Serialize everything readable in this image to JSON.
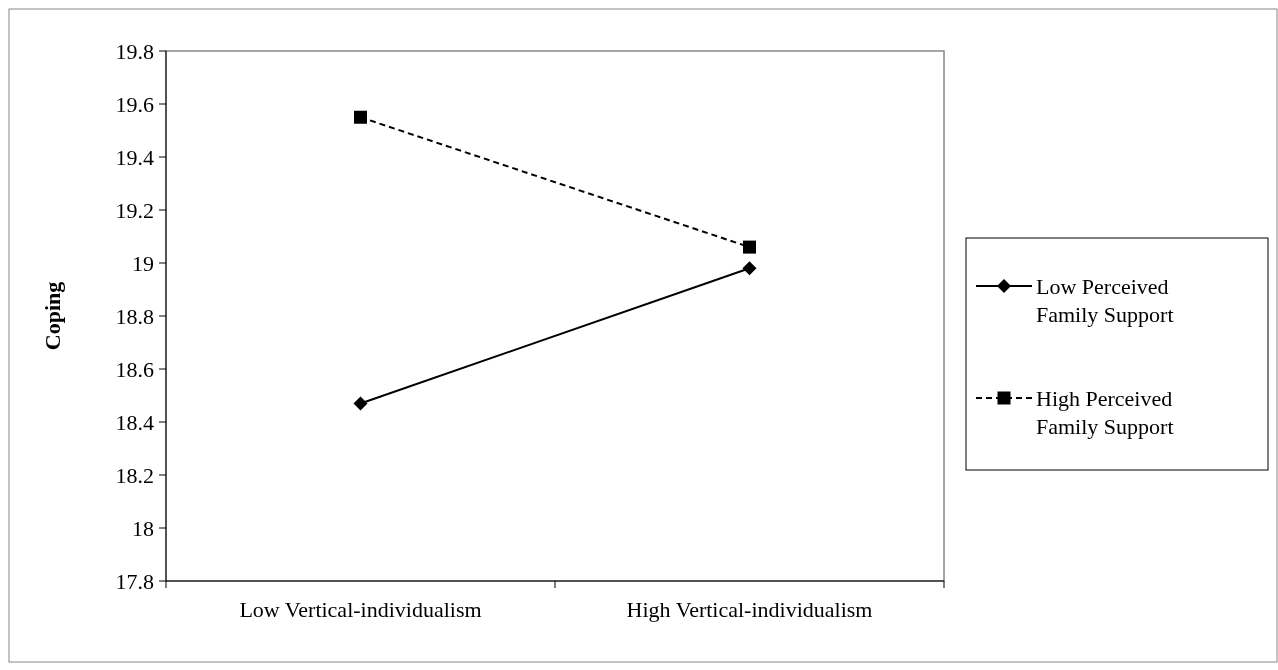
{
  "chart_data": {
    "type": "line",
    "ylabel": "Coping",
    "categories": [
      "Low Vertical-individualism",
      "High Vertical-individualism"
    ],
    "series": [
      {
        "name": "Low Perceived Family Support",
        "color": "#000000",
        "values": [
          18.47,
          18.98
        ],
        "marker": "diamond",
        "line_style": "solid"
      },
      {
        "name": "High Perceived Family Support",
        "color": "#000000",
        "values": [
          19.55,
          19.06
        ],
        "marker": "square",
        "line_style": "dashed"
      }
    ],
    "ylim": [
      17.8,
      19.8
    ],
    "yticks": [
      17.8,
      18,
      18.2,
      18.4,
      18.6,
      18.8,
      19,
      19.2,
      19.4,
      19.6,
      19.8
    ],
    "grid": false,
    "legend": "right"
  }
}
